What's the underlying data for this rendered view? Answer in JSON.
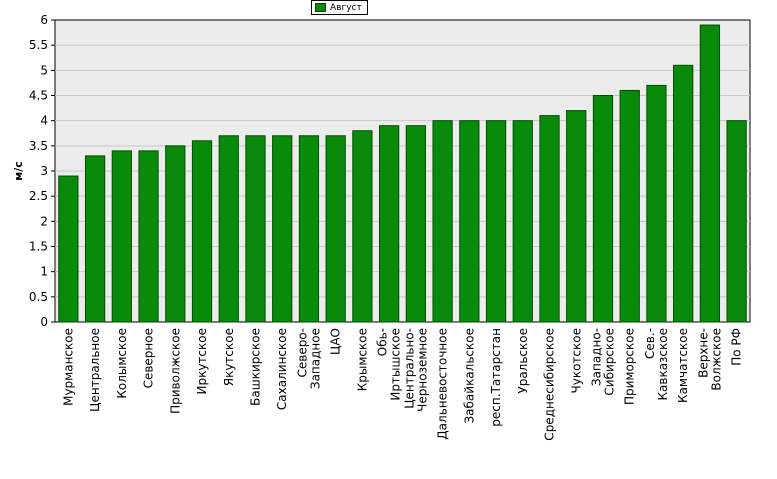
{
  "chart_data": {
    "type": "bar",
    "title": "",
    "xlabel": "",
    "ylabel": "м/с",
    "ylim": [
      0,
      6
    ],
    "yticks": [
      "0",
      "0.5",
      "1",
      "1.5",
      "2",
      "2.5",
      "3",
      "3.5",
      "4",
      "4.5",
      "5",
      "5.5",
      "6"
    ],
    "legend": {
      "position": "top-center",
      "entries": [
        "Август"
      ]
    },
    "grid": true,
    "colors": {
      "bar_fill": "#0a8a0a",
      "bar_stroke": "#004d00",
      "plot_bg": "#ececec",
      "grid": "#c8c8c8"
    },
    "categories": [
      [
        "Мурманское"
      ],
      [
        "Центральное"
      ],
      [
        "Колымское"
      ],
      [
        "Северное"
      ],
      [
        "Приволжское"
      ],
      [
        "Иркутское"
      ],
      [
        "Якутское"
      ],
      [
        "Башкирское"
      ],
      [
        "Сахалинское"
      ],
      [
        "Северо-",
        "Западное"
      ],
      [
        "ЦАО"
      ],
      [
        "Крымское"
      ],
      [
        "Обь-",
        "Иртышское"
      ],
      [
        "Центрально-",
        "Черноземное"
      ],
      [
        "Дальневосточное"
      ],
      [
        "Забайкальское"
      ],
      [
        "респ.Татарстан"
      ],
      [
        "Уральское"
      ],
      [
        "Среднесибирское"
      ],
      [
        "Чукотское"
      ],
      [
        "Западно-",
        "Сибирское"
      ],
      [
        "Приморское"
      ],
      [
        "Сев.-",
        "Кавказское"
      ],
      [
        "Камчатское"
      ],
      [
        "Верхне-",
        "Волжское"
      ],
      [
        "По РФ"
      ]
    ],
    "series": [
      {
        "name": "Август",
        "values": [
          2.9,
          3.3,
          3.4,
          3.4,
          3.5,
          3.6,
          3.7,
          3.7,
          3.7,
          3.7,
          3.7,
          3.8,
          3.9,
          3.9,
          4.0,
          4.0,
          4.0,
          4.0,
          4.1,
          4.2,
          4.5,
          4.6,
          4.7,
          5.1,
          5.9,
          4.0
        ]
      }
    ]
  }
}
